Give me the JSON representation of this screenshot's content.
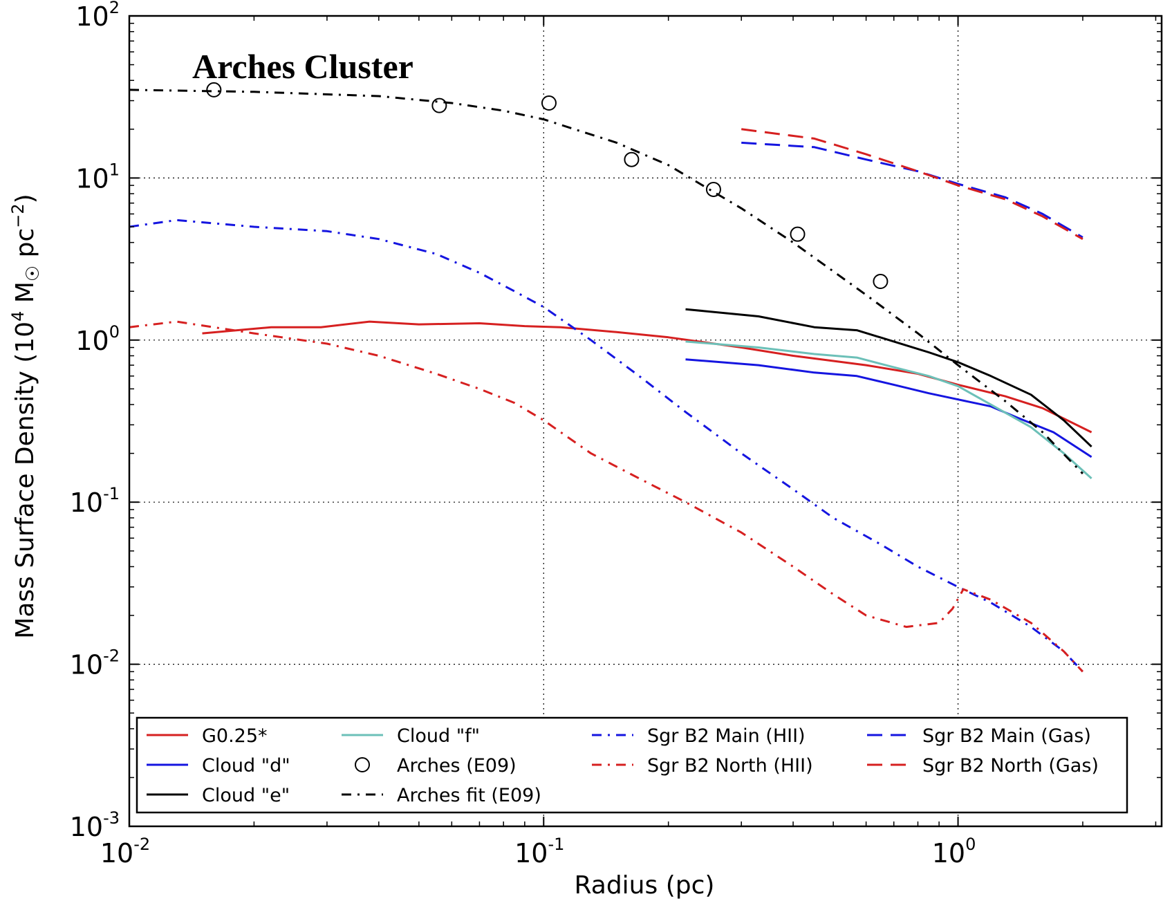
{
  "chart_data": {
    "type": "line",
    "title": "",
    "annotation": "Arches Cluster",
    "xlabel": "Radius (pc)",
    "ylabel_parts": [
      "Mass Surface Density (10",
      "4",
      " M",
      "☉",
      " pc",
      "−2",
      ")"
    ],
    "xscale": "log",
    "yscale": "log",
    "xlim": [
      0.01,
      3.1
    ],
    "ylim": [
      0.001,
      100
    ],
    "x_ticks": [
      {
        "base": "10",
        "exp": "-2"
      },
      {
        "base": "10",
        "exp": "-1"
      },
      {
        "base": "10",
        "exp": "0"
      }
    ],
    "y_ticks": [
      {
        "base": "10",
        "exp": "-3"
      },
      {
        "base": "10",
        "exp": "-2"
      },
      {
        "base": "10",
        "exp": "-1"
      },
      {
        "base": "10",
        "exp": "0"
      },
      {
        "base": "10",
        "exp": "1"
      },
      {
        "base": "10",
        "exp": "2"
      }
    ],
    "grid": true,
    "legend_position": "lower-center",
    "series": [
      {
        "name": "G0.25*",
        "color": "#d62020",
        "style": "solid",
        "x": [
          0.015,
          0.022,
          0.029,
          0.038,
          0.05,
          0.07,
          0.09,
          0.11,
          0.15,
          0.2,
          0.3,
          0.4,
          0.6,
          0.8,
          1.0,
          1.3,
          1.6,
          2.1
        ],
        "y": [
          1.1,
          1.2,
          1.2,
          1.3,
          1.25,
          1.27,
          1.22,
          1.2,
          1.12,
          1.04,
          0.9,
          0.8,
          0.7,
          0.62,
          0.53,
          0.45,
          0.38,
          0.27
        ]
      },
      {
        "name": "Cloud \"d\"",
        "color": "#1515e0",
        "style": "solid",
        "x": [
          0.22,
          0.33,
          0.45,
          0.57,
          0.7,
          0.85,
          1.0,
          1.2,
          1.4,
          1.7,
          2.1
        ],
        "y": [
          0.76,
          0.7,
          0.63,
          0.6,
          0.53,
          0.47,
          0.43,
          0.39,
          0.33,
          0.27,
          0.19
        ]
      },
      {
        "name": "Cloud \"e\"",
        "color": "#000000",
        "style": "solid",
        "x": [
          0.22,
          0.33,
          0.45,
          0.57,
          0.7,
          0.85,
          1.0,
          1.2,
          1.5,
          1.8,
          2.1
        ],
        "y": [
          1.55,
          1.4,
          1.2,
          1.15,
          0.98,
          0.84,
          0.73,
          0.6,
          0.46,
          0.32,
          0.22
        ]
      },
      {
        "name": "Cloud \"f\"",
        "color": "#6cc0b8",
        "style": "solid",
        "x": [
          0.22,
          0.33,
          0.45,
          0.57,
          0.7,
          0.85,
          1.0,
          1.2,
          1.5,
          1.8,
          2.1
        ],
        "y": [
          0.98,
          0.9,
          0.82,
          0.78,
          0.68,
          0.6,
          0.52,
          0.4,
          0.29,
          0.2,
          0.14
        ]
      },
      {
        "name": "Arches (E09)",
        "color": "#000000",
        "style": "markers",
        "x": [
          0.016,
          0.056,
          0.103,
          0.163,
          0.257,
          0.41,
          0.65
        ],
        "y": [
          35,
          28,
          29,
          13,
          8.5,
          4.5,
          2.3
        ]
      },
      {
        "name": "Arches fit (E09)",
        "color": "#000000",
        "style": "dashdot",
        "x": [
          0.01,
          0.02,
          0.04,
          0.06,
          0.08,
          0.1,
          0.15,
          0.2,
          0.3,
          0.4,
          0.6,
          0.8,
          1.0,
          1.3,
          1.6,
          2.0
        ],
        "y": [
          35,
          34,
          32,
          29,
          26,
          23,
          16.5,
          12,
          6.5,
          4.0,
          1.9,
          1.1,
          0.7,
          0.42,
          0.27,
          0.15
        ]
      },
      {
        "name": "Sgr B2 Main (HII)",
        "color": "#1515e0",
        "style": "dashdot",
        "x": [
          0.01,
          0.013,
          0.02,
          0.03,
          0.04,
          0.055,
          0.07,
          0.085,
          0.1,
          0.13,
          0.17,
          0.22,
          0.3,
          0.4,
          0.5,
          0.65,
          0.8,
          1.0,
          1.2,
          1.5,
          1.8,
          2.0
        ],
        "y": [
          5.0,
          5.5,
          5.0,
          4.7,
          4.2,
          3.4,
          2.6,
          2.0,
          1.6,
          1.0,
          0.6,
          0.36,
          0.2,
          0.12,
          0.08,
          0.055,
          0.04,
          0.03,
          0.024,
          0.017,
          0.012,
          0.009
        ]
      },
      {
        "name": "Sgr B2 North (HII)",
        "color": "#d62020",
        "style": "dashdot",
        "x": [
          0.01,
          0.013,
          0.02,
          0.03,
          0.04,
          0.055,
          0.07,
          0.085,
          0.1,
          0.13,
          0.17,
          0.22,
          0.3,
          0.4,
          0.5,
          0.6,
          0.75,
          0.9,
          0.97,
          1.03,
          1.2,
          1.5,
          1.8,
          2.0
        ],
        "y": [
          1.2,
          1.3,
          1.1,
          0.95,
          0.8,
          0.62,
          0.5,
          0.41,
          0.32,
          0.2,
          0.14,
          0.1,
          0.065,
          0.04,
          0.027,
          0.02,
          0.017,
          0.018,
          0.022,
          0.029,
          0.025,
          0.018,
          0.012,
          0.009
        ]
      },
      {
        "name": "Sgr B2 Main (Gas)",
        "color": "#1515e0",
        "style": "dashed",
        "x": [
          0.3,
          0.45,
          0.6,
          0.8,
          1.0,
          1.3,
          1.6,
          2.0
        ],
        "y": [
          16.5,
          15.5,
          13,
          11,
          9.2,
          7.6,
          6.0,
          4.3
        ]
      },
      {
        "name": "Sgr B2 North (Gas)",
        "color": "#d62020",
        "style": "dashed",
        "x": [
          0.3,
          0.45,
          0.6,
          0.8,
          1.0,
          1.3,
          1.6,
          2.0
        ],
        "y": [
          20,
          17.5,
          14,
          11,
          9.0,
          7.4,
          5.8,
          4.2
        ]
      }
    ]
  }
}
